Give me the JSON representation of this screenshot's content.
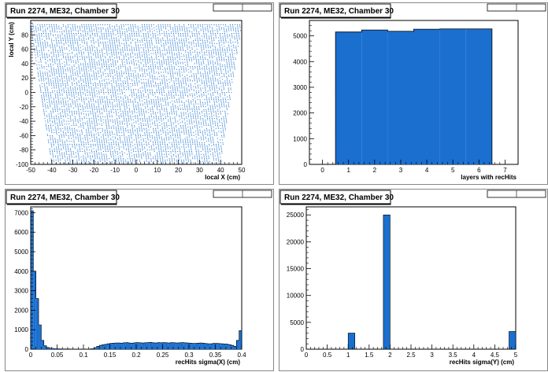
{
  "chart_data": [
    {
      "type": "scatter",
      "title": "Run 2274, ME32, Chamber 30",
      "xlabel": "local X (cm)",
      "ylabel": "local Y (cm)",
      "xlim": [
        -50,
        50
      ],
      "ylim": [
        -100,
        100
      ],
      "xticks": [
        -50,
        -40,
        -30,
        -20,
        -10,
        0,
        10,
        20,
        30,
        40,
        50
      ],
      "yticks": [
        -100,
        -80,
        -60,
        -40,
        -20,
        0,
        20,
        40,
        60,
        80
      ],
      "region": {
        "top_half_width": 50,
        "bottom_half_width": 40,
        "y_min": -98,
        "y_max": 94,
        "strip_pitch": 1.1,
        "row_pitch": 2
      },
      "color": "#1a6fcf",
      "grid": false,
      "legend": "top-right"
    },
    {
      "type": "bar",
      "title": "Run 2274, ME32, Chamber 30",
      "xlabel": "layers with recHits",
      "ylabel": "",
      "xlim": [
        -0.5,
        7.5
      ],
      "ylim": [
        0,
        5600
      ],
      "xticks": [
        0,
        1,
        2,
        3,
        4,
        5,
        6,
        7
      ],
      "yticks": [
        0,
        1000,
        2000,
        3000,
        4000,
        5000
      ],
      "x": [
        1,
        2,
        3,
        4,
        5,
        6
      ],
      "values": [
        5150,
        5230,
        5180,
        5260,
        5270,
        5270
      ],
      "color": "#1a6fcf",
      "grid": false,
      "legend": "top-right"
    },
    {
      "type": "bar",
      "title": "Run 2274, ME32, Chamber 30",
      "xlabel": "recHits sigma(X) (cm)",
      "ylabel": "",
      "xlim": [
        0,
        0.4
      ],
      "ylim": [
        0,
        7300
      ],
      "xticks": [
        0,
        0.05,
        0.1,
        0.15,
        0.2,
        0.25,
        0.3,
        0.35,
        0.4
      ],
      "yticks": [
        0,
        1000,
        2000,
        3000,
        4000,
        5000,
        6000,
        7000
      ],
      "bin_width": 0.005,
      "values": [
        7100,
        4000,
        2600,
        1250,
        450,
        180,
        90,
        60,
        40,
        30,
        25,
        20,
        15,
        15,
        12,
        10,
        10,
        8,
        8,
        8,
        10,
        10,
        15,
        30,
        80,
        150,
        200,
        230,
        250,
        280,
        300,
        310,
        320,
        320,
        310,
        330,
        340,
        320,
        310,
        330,
        340,
        330,
        320,
        330,
        340,
        350,
        330,
        320,
        340,
        330,
        340,
        330,
        320,
        340,
        330,
        320,
        330,
        340,
        330,
        320,
        310,
        300,
        300,
        310,
        320,
        310,
        290,
        280,
        280,
        300,
        300,
        290,
        280,
        270,
        260,
        230,
        200,
        150,
        450,
        950
      ],
      "color": "#1a6fcf",
      "grid": false,
      "legend": "top-right"
    },
    {
      "type": "bar",
      "title": "Run 2274, ME32, Chamber 30",
      "xlabel": "recHits sigma(Y) (cm)",
      "ylabel": "",
      "xlim": [
        0,
        5
      ],
      "ylim": [
        0,
        26500
      ],
      "xticks": [
        0,
        0.5,
        1,
        1.5,
        2,
        2.5,
        3,
        3.5,
        4,
        4.5,
        5
      ],
      "yticks": [
        0,
        5000,
        10000,
        15000,
        20000,
        25000
      ],
      "bins": [
        {
          "x0": 1.0,
          "x1": 1.16,
          "value": 3000
        },
        {
          "x0": 1.84,
          "x1": 2.0,
          "value": 25000
        },
        {
          "x0": 4.84,
          "x1": 5.0,
          "value": 3300
        }
      ],
      "color": "#1a6fcf",
      "grid": false,
      "legend": "top-right"
    }
  ]
}
